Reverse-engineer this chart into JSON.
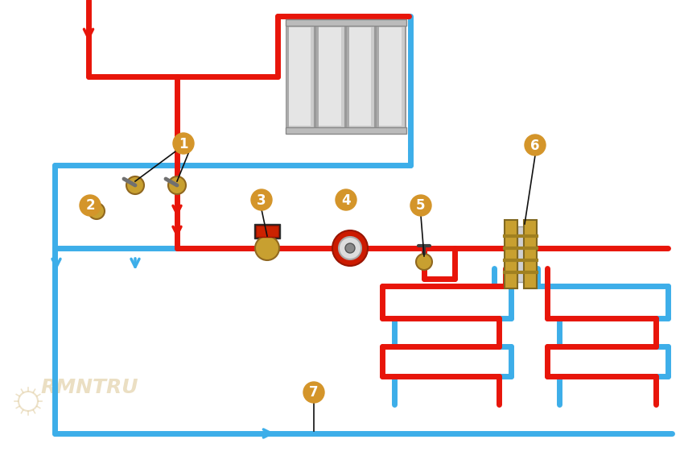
{
  "bg_color": "#ffffff",
  "red_color": "#e8150a",
  "blue_color": "#3daee9",
  "pipe_lw": 5,
  "label_bg": "#d4952a",
  "label_fg": "#ffffff",
  "label_fontsize": 12,
  "watermark": "RMNTRU"
}
